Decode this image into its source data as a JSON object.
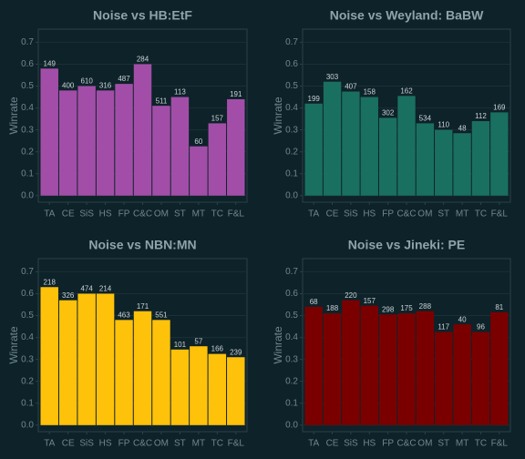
{
  "chart_data": [
    {
      "type": "bar",
      "title": "Noise vs HB:EtF",
      "y_label": "Winrate",
      "color": "#a24ea8",
      "categories": [
        "TA",
        "CE",
        "SiS",
        "HS",
        "FP",
        "C&C",
        "OM",
        "ST",
        "MT",
        "TC",
        "F&L"
      ],
      "values": [
        0.58,
        0.48,
        0.5,
        0.48,
        0.51,
        0.6,
        0.41,
        0.45,
        0.225,
        0.33,
        0.44
      ],
      "counts": [
        "149",
        "400",
        "610",
        "316",
        "487",
        "284",
        "511",
        "113",
        "60",
        "157",
        "191"
      ],
      "ylim": [
        -0.03,
        0.76
      ],
      "yticks": [
        {
          "value": 0,
          "label": "0.0"
        },
        0.1,
        0.2,
        0.3,
        0.4,
        0.5,
        0.6,
        0.7
      ],
      "grid": true
    },
    {
      "type": "bar",
      "title": "Noise vs Weyland: BaBW",
      "y_label": "Winrate",
      "color": "#1a7060",
      "categories": [
        "TA",
        "CE",
        "SiS",
        "HS",
        "FP",
        "C&C",
        "OM",
        "ST",
        "MT",
        "TC",
        "F&L"
      ],
      "values": [
        0.42,
        0.52,
        0.475,
        0.45,
        0.355,
        0.455,
        0.33,
        0.3,
        0.285,
        0.34,
        0.38
      ],
      "counts": [
        "199",
        "303",
        "407",
        "158",
        "302",
        "162",
        "534",
        "110",
        "48",
        "112",
        "169"
      ],
      "ylim": [
        -0.03,
        0.76
      ],
      "yticks": [
        {
          "value": 0,
          "label": "0.0"
        },
        0.1,
        0.2,
        0.3,
        0.4,
        0.5,
        0.6,
        0.7
      ],
      "grid": true
    },
    {
      "type": "bar",
      "title": "Noise vs NBN:MN",
      "y_label": "Winrate",
      "color": "#ffc20a",
      "categories": [
        "TA",
        "CE",
        "SiS",
        "HS",
        "FP",
        "C&C",
        "OM",
        "ST",
        "MT",
        "TC",
        "F&L"
      ],
      "values": [
        0.63,
        0.57,
        0.6,
        0.6,
        0.48,
        0.52,
        0.48,
        0.345,
        0.36,
        0.325,
        0.31
      ],
      "counts": [
        "218",
        "326",
        "474",
        "214",
        "463",
        "171",
        "551",
        "101",
        "57",
        "166",
        "239"
      ],
      "ylim": [
        -0.03,
        0.76
      ],
      "yticks": [
        {
          "value": 0,
          "label": "0.0"
        },
        0.1,
        0.2,
        0.3,
        0.4,
        0.5,
        0.6,
        0.7
      ],
      "grid": true
    },
    {
      "type": "bar",
      "title": "Noise vs Jineki: PE",
      "y_label": "Winrate",
      "color": "#7a0000",
      "categories": [
        "TA",
        "CE",
        "SiS",
        "HS",
        "FP",
        "C&C",
        "OM",
        "ST",
        "MT",
        "TC",
        "F&L"
      ],
      "values": [
        0.54,
        0.51,
        0.57,
        0.545,
        0.505,
        0.51,
        0.52,
        0.425,
        0.46,
        0.425,
        0.515
      ],
      "counts": [
        "68",
        "188",
        "220",
        "157",
        "298",
        "175",
        "288",
        "117",
        "40",
        "96",
        "81"
      ],
      "ylim": [
        -0.03,
        0.76
      ],
      "yticks": [
        {
          "value": 0,
          "label": "0.0"
        },
        0.1,
        0.2,
        0.3,
        0.4,
        0.5,
        0.6,
        0.7
      ],
      "grid": true
    }
  ]
}
